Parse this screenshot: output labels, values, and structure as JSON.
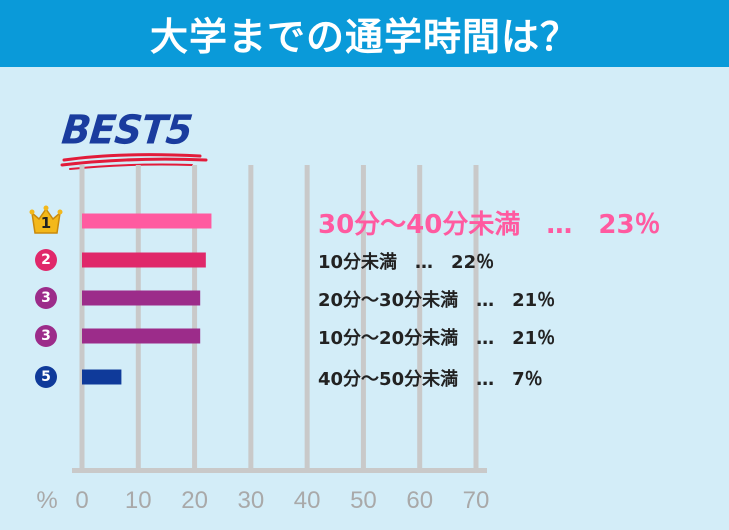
{
  "header": {
    "title": "大学までの通学時間は？"
  },
  "badge": {
    "text": "BEST5"
  },
  "colors": {
    "header_bg": "#0a9ad9",
    "background": "#d3edf8",
    "rank1": "#ff5aa0",
    "rank2": "#e0286a",
    "rank3": "#9c2c8a",
    "rank5": "#0f3a9a",
    "grid": "#c9c9c9",
    "tick_text": "#a9a9a9"
  },
  "chart_data": {
    "type": "bar",
    "orientation": "horizontal",
    "categories": [
      "30分～40分未満",
      "10分未満",
      "20分～30分未満",
      "10分～20分未満",
      "40分～50分未満"
    ],
    "ranks": [
      "1",
      "2",
      "3",
      "3",
      "5"
    ],
    "values": [
      23,
      22,
      21,
      21,
      7
    ],
    "xlabel": "%",
    "xlim": [
      0,
      70
    ],
    "xticks": [
      "0",
      "10",
      "20",
      "30",
      "40",
      "50",
      "60",
      "70"
    ],
    "grid": true,
    "labels": [
      "30分～40分未満　…　23％",
      "10分未満　…　22％",
      "20分～30分未満　…　21％",
      "10分～20分未満　…　21％",
      "40分～50分未満　…　7％"
    ]
  }
}
